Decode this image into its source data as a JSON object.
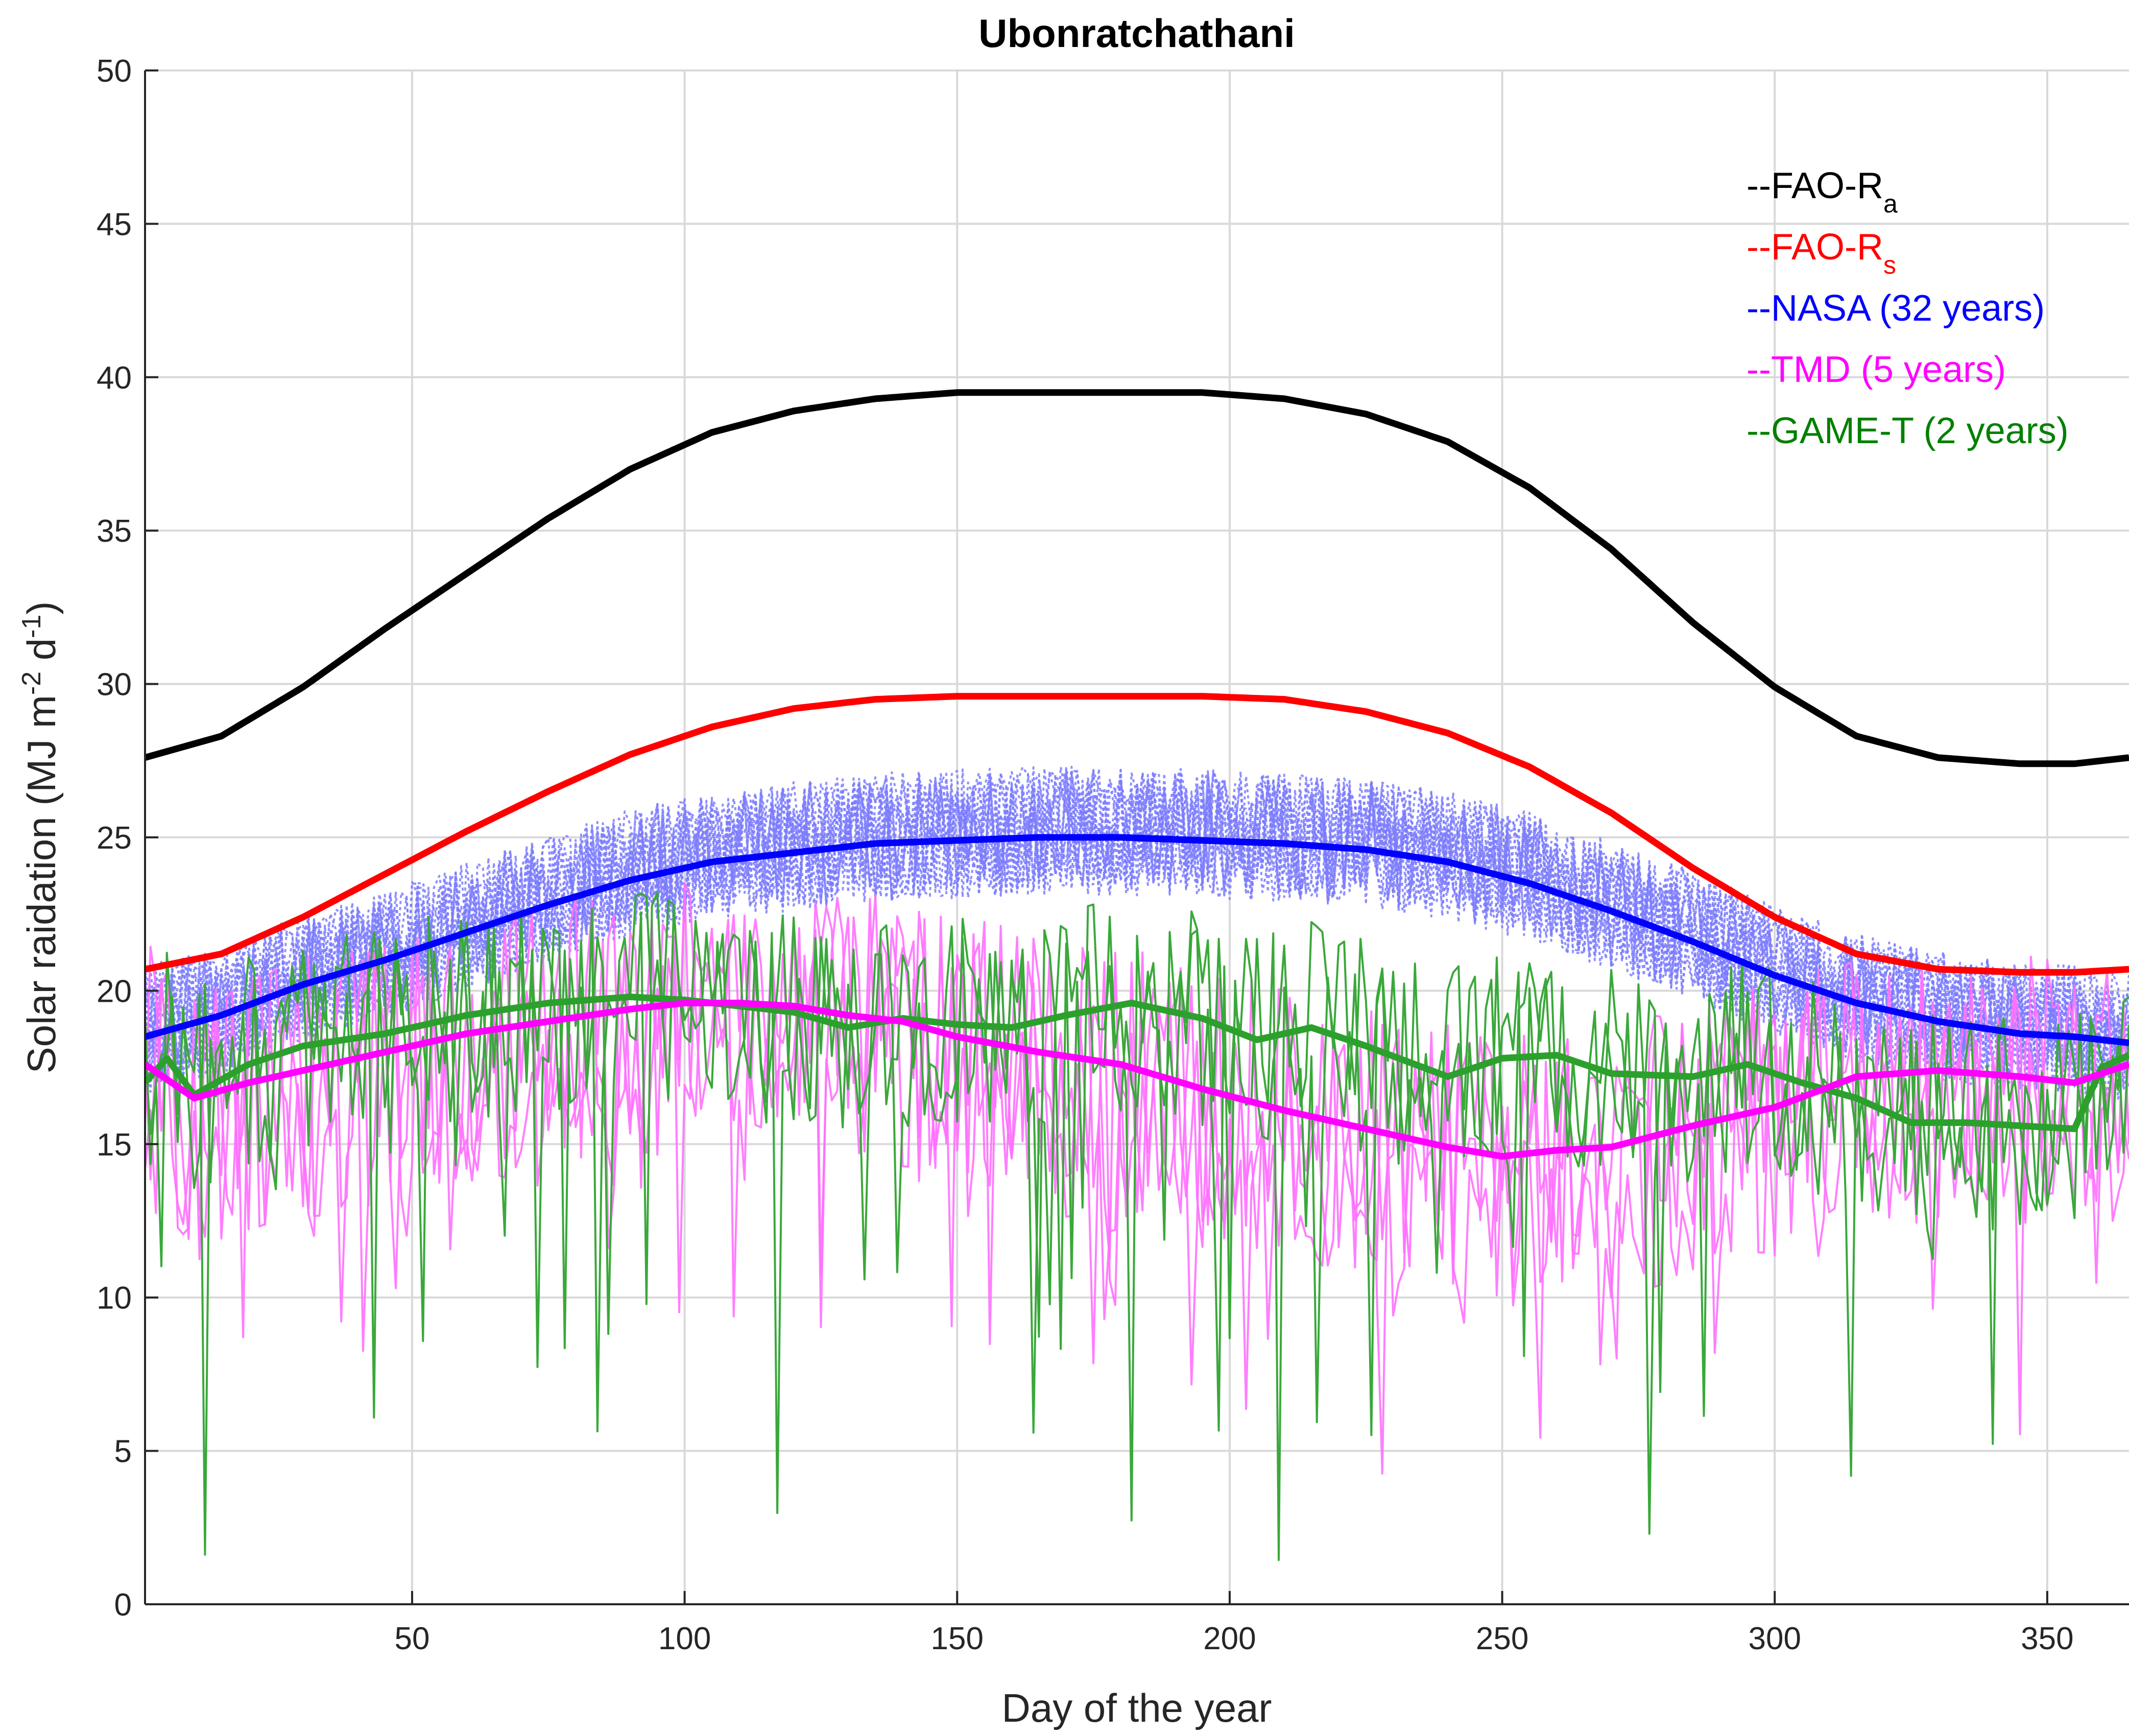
{
  "chart_data": {
    "type": "line",
    "title": "Ubonratchathani",
    "xlabel": "Day of the year",
    "ylabel": {
      "text": "Solar raidation (MJ m",
      "sup1": "-2",
      "mid": " d",
      "sup2": "-1",
      "end": ")"
    },
    "xlim": [
      1,
      365
    ],
    "ylim": [
      0,
      50
    ],
    "xticks": [
      "50",
      "100",
      "150",
      "200",
      "250",
      "300",
      "350"
    ],
    "yticks": [
      "0",
      "5",
      "10",
      "15",
      "20",
      "25",
      "30",
      "35",
      "40",
      "45",
      "50"
    ],
    "grid": true,
    "legend_position": "top-right",
    "legend": [
      {
        "prefix": "--FAO-R",
        "sub": "a",
        "color": "#000000"
      },
      {
        "prefix": "--FAO-R",
        "sub": "s",
        "color": "#ff0000"
      },
      {
        "prefix": "--NASA (32 years)",
        "sub": "",
        "color": "#0000ff"
      },
      {
        "prefix": "--TMD (5 years)",
        "sub": "",
        "color": "#ff00ff"
      },
      {
        "prefix": "--GAME-T (2 years)",
        "sub": "",
        "color": "#008000"
      }
    ],
    "series": [
      {
        "name": "FAO-Ra",
        "color": "#000000",
        "style": "mean",
        "x": [
          1,
          15,
          30,
          45,
          60,
          75,
          90,
          105,
          120,
          135,
          150,
          165,
          180,
          195,
          210,
          225,
          240,
          255,
          270,
          285,
          300,
          315,
          330,
          345,
          355,
          365
        ],
        "y": [
          27.6,
          28.3,
          29.9,
          31.8,
          33.6,
          35.4,
          37.0,
          38.2,
          38.9,
          39.3,
          39.5,
          39.5,
          39.5,
          39.5,
          39.3,
          38.8,
          37.9,
          36.4,
          34.4,
          32.0,
          29.9,
          28.3,
          27.6,
          27.4,
          27.4,
          27.6
        ]
      },
      {
        "name": "FAO-Rs",
        "color": "#ff0000",
        "style": "mean",
        "x": [
          1,
          15,
          30,
          45,
          60,
          75,
          90,
          105,
          120,
          135,
          150,
          165,
          180,
          195,
          210,
          225,
          240,
          255,
          270,
          285,
          300,
          315,
          330,
          345,
          355,
          365
        ],
        "y": [
          20.7,
          21.2,
          22.4,
          23.8,
          25.2,
          26.5,
          27.7,
          28.6,
          29.2,
          29.5,
          29.6,
          29.6,
          29.6,
          29.6,
          29.5,
          29.1,
          28.4,
          27.3,
          25.8,
          24.0,
          22.4,
          21.2,
          20.7,
          20.6,
          20.6,
          20.7
        ]
      },
      {
        "name": "NASA (32 years)",
        "color": "#0000ff",
        "style": "mean",
        "x": [
          1,
          15,
          30,
          45,
          60,
          75,
          90,
          105,
          120,
          135,
          150,
          165,
          180,
          195,
          210,
          225,
          240,
          255,
          270,
          285,
          300,
          315,
          330,
          345,
          355,
          365
        ],
        "y": [
          18.5,
          19.2,
          20.2,
          21.0,
          21.9,
          22.8,
          23.6,
          24.2,
          24.5,
          24.8,
          24.9,
          25.0,
          25.0,
          24.9,
          24.8,
          24.6,
          24.2,
          23.5,
          22.6,
          21.6,
          20.5,
          19.6,
          19.0,
          18.6,
          18.5,
          18.3
        ]
      },
      {
        "name": "TMD (5 years)",
        "color": "#ff00ff",
        "style": "mean",
        "x": [
          1,
          10,
          20,
          30,
          45,
          60,
          75,
          90,
          100,
          110,
          120,
          130,
          140,
          150,
          165,
          180,
          195,
          210,
          225,
          240,
          250,
          260,
          270,
          285,
          300,
          315,
          330,
          345,
          355,
          365
        ],
        "y": [
          17.6,
          16.5,
          17.0,
          17.4,
          18.0,
          18.6,
          19.0,
          19.4,
          19.6,
          19.6,
          19.5,
          19.2,
          19.0,
          18.5,
          18.0,
          17.6,
          16.8,
          16.1,
          15.5,
          14.9,
          14.6,
          14.8,
          14.9,
          15.6,
          16.2,
          17.2,
          17.4,
          17.2,
          17.0,
          17.6
        ]
      },
      {
        "name": "GAME-T (2 years)",
        "color": "#2ca02c",
        "style": "mean",
        "x": [
          1,
          5,
          10,
          20,
          30,
          45,
          60,
          75,
          90,
          100,
          110,
          120,
          130,
          140,
          150,
          160,
          170,
          182,
          195,
          205,
          215,
          225,
          240,
          250,
          260,
          270,
          285,
          295,
          305,
          315,
          325,
          335,
          345,
          355,
          360,
          365
        ],
        "y": [
          17.0,
          17.8,
          16.6,
          17.6,
          18.2,
          18.6,
          19.2,
          19.6,
          19.8,
          19.7,
          19.5,
          19.3,
          18.8,
          19.1,
          18.9,
          18.8,
          19.2,
          19.6,
          19.1,
          18.4,
          18.8,
          18.2,
          17.2,
          17.8,
          17.9,
          17.3,
          17.2,
          17.6,
          17.0,
          16.5,
          15.7,
          15.7,
          15.6,
          15.5,
          17.5,
          17.9
        ]
      },
      {
        "name": "NASA daily",
        "color": "#7b7bff",
        "style": "daily",
        "band": "nasa"
      },
      {
        "name": "TMD daily",
        "color": "#ff70ff",
        "style": "daily",
        "band": "tmd"
      },
      {
        "name": "GAME-T daily",
        "color": "#3aa83a",
        "style": "daily",
        "band": "game"
      }
    ]
  }
}
